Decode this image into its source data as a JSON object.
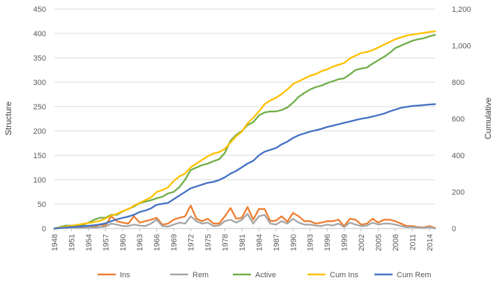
{
  "chart_data": {
    "type": "line",
    "title": "",
    "xlabel": "",
    "ylabel": "Structure",
    "y2label": "Cumulative",
    "ylim": [
      0,
      450
    ],
    "y2lim": [
      0,
      1200
    ],
    "yticks": [
      0,
      50,
      100,
      150,
      200,
      250,
      300,
      350,
      400,
      450
    ],
    "y2ticks": [
      0,
      200,
      400,
      600,
      800,
      1000,
      1200
    ],
    "y2tick_labels": [
      "0",
      "200",
      "400",
      "600",
      "800",
      "1,000",
      "1,200"
    ],
    "x_tick_labels": [
      "1948",
      "1951",
      "1954",
      "1957",
      "1960",
      "1963",
      "1966",
      "1969",
      "1972",
      "1975",
      "1978",
      "1981",
      "1984",
      "1987",
      "1990",
      "1993",
      "1996",
      "1999",
      "2002",
      "2005",
      "2008",
      "2011",
      "2014"
    ],
    "x": [
      1948,
      1949,
      1950,
      1951,
      1952,
      1953,
      1954,
      1955,
      1956,
      1957,
      1958,
      1959,
      1960,
      1961,
      1962,
      1963,
      1964,
      1965,
      1966,
      1967,
      1968,
      1969,
      1970,
      1971,
      1972,
      1973,
      1974,
      1975,
      1976,
      1977,
      1978,
      1979,
      1980,
      1981,
      1982,
      1983,
      1984,
      1985,
      1986,
      1987,
      1988,
      1989,
      1990,
      1991,
      1992,
      1993,
      1994,
      1995,
      1996,
      1997,
      1998,
      1999,
      2000,
      2001,
      2002,
      2003,
      2004,
      2005,
      2006,
      2007,
      2008,
      2009,
      2010,
      2011,
      2012,
      2013,
      2014,
      2015
    ],
    "legend_position": "bottom",
    "series": [
      {
        "name": "Ins",
        "axis": "left",
        "color": "#ED7D31",
        "values": [
          0,
          2,
          3,
          2,
          1,
          2,
          5,
          3,
          8,
          6,
          25,
          15,
          12,
          10,
          25,
          12,
          15,
          18,
          22,
          8,
          10,
          18,
          22,
          25,
          47,
          20,
          15,
          20,
          10,
          10,
          25,
          42,
          20,
          22,
          44,
          18,
          40,
          40,
          15,
          16,
          25,
          14,
          32,
          25,
          15,
          15,
          10,
          12,
          15,
          15,
          18,
          5,
          20,
          18,
          8,
          10,
          20,
          12,
          18,
          18,
          15,
          10,
          5,
          5,
          3,
          2,
          5,
          1
        ]
      },
      {
        "name": "Rem",
        "axis": "left",
        "color": "#A5A5A5",
        "values": [
          0,
          1,
          1,
          2,
          1,
          1,
          2,
          2,
          3,
          4,
          10,
          8,
          5,
          5,
          8,
          6,
          5,
          10,
          18,
          5,
          4,
          8,
          12,
          10,
          25,
          15,
          10,
          12,
          5,
          6,
          15,
          18,
          12,
          18,
          30,
          10,
          25,
          28,
          10,
          8,
          15,
          10,
          20,
          12,
          8,
          8,
          6,
          5,
          8,
          6,
          10,
          3,
          12,
          8,
          5,
          6,
          12,
          8,
          10,
          10,
          8,
          5,
          3,
          3,
          2,
          1,
          3,
          0
        ]
      },
      {
        "name": "Active",
        "axis": "left",
        "color": "#70AD47",
        "values": [
          0,
          3,
          6,
          6,
          6,
          7,
          12,
          18,
          22,
          22,
          28,
          28,
          35,
          40,
          45,
          52,
          55,
          58,
          62,
          65,
          72,
          75,
          85,
          100,
          120,
          125,
          130,
          133,
          138,
          142,
          155,
          180,
          192,
          200,
          212,
          218,
          232,
          238,
          240,
          240,
          243,
          248,
          258,
          270,
          278,
          285,
          290,
          293,
          298,
          302,
          306,
          308,
          316,
          325,
          328,
          330,
          338,
          345,
          352,
          360,
          370,
          375,
          380,
          385,
          388,
          390,
          394,
          397
        ]
      },
      {
        "name": "Cum Ins",
        "axis": "right",
        "color": "#FFC000",
        "values": [
          0,
          5,
          10,
          15,
          20,
          25,
          30,
          35,
          42,
          55,
          70,
          80,
          95,
          105,
          125,
          140,
          155,
          170,
          200,
          210,
          225,
          260,
          285,
          300,
          335,
          355,
          375,
          395,
          410,
          418,
          435,
          470,
          505,
          530,
          575,
          605,
          640,
          680,
          700,
          715,
          735,
          760,
          790,
          805,
          820,
          835,
          845,
          860,
          870,
          885,
          895,
          905,
          930,
          945,
          960,
          965,
          975,
          990,
          1005,
          1020,
          1035,
          1045,
          1055,
          1060,
          1065,
          1070,
          1075,
          1078
        ]
      },
      {
        "name": "Cum Rem",
        "axis": "right",
        "color": "#4472C4",
        "values": [
          0,
          2,
          5,
          8,
          10,
          12,
          15,
          18,
          22,
          28,
          40,
          50,
          58,
          65,
          75,
          90,
          98,
          110,
          130,
          135,
          140,
          160,
          180,
          200,
          220,
          230,
          240,
          250,
          255,
          265,
          280,
          300,
          315,
          335,
          355,
          370,
          400,
          420,
          430,
          440,
          460,
          475,
          495,
          510,
          520,
          530,
          537,
          545,
          555,
          562,
          570,
          578,
          585,
          593,
          600,
          605,
          612,
          620,
          628,
          640,
          650,
          660,
          665,
          670,
          672,
          675,
          678,
          680
        ]
      }
    ]
  }
}
